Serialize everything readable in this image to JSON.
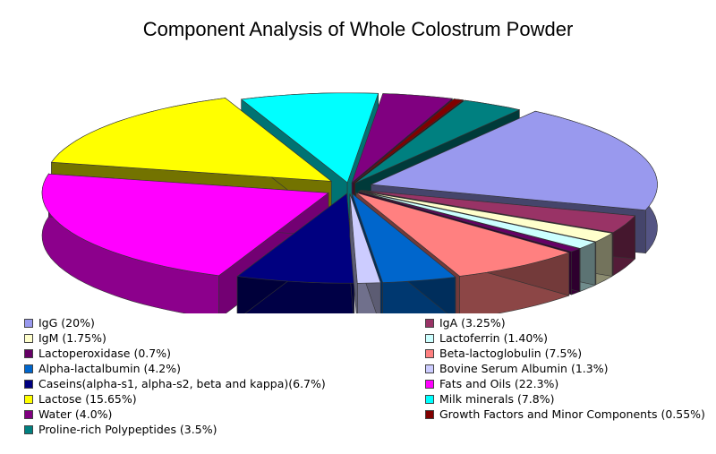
{
  "chart_data": {
    "type": "pie",
    "title": "Component Analysis of Whole Colostrum Powder",
    "legend_position": "bottom",
    "slices": [
      {
        "label": "IgG (20%)",
        "value": 20,
        "color": "#9999ee"
      },
      {
        "label": "IgA (3.25%)",
        "value": 3.25,
        "color": "#993366"
      },
      {
        "label": "IgM (1.75%)",
        "value": 1.75,
        "color": "#ffffcc"
      },
      {
        "label": "Lactoferrin (1.40%)",
        "value": 1.4,
        "color": "#ccffff"
      },
      {
        "label": "Lactoperoxidase (0.7%)",
        "value": 0.7,
        "color": "#660066"
      },
      {
        "label": "Beta-lactoglobulin (7.5%)",
        "value": 7.5,
        "color": "#ff8080"
      },
      {
        "label": "Alpha-lactalbumin (4.2%)",
        "value": 4.2,
        "color": "#0066cc"
      },
      {
        "label": "Bovine Serum Albumin (1.3%)",
        "value": 1.3,
        "color": "#ccccff"
      },
      {
        "label": "Caseins(alpha-s1, alpha-s2, beta and kappa)(6.7%)",
        "value": 6.7,
        "color": "#000080"
      },
      {
        "label": "Fats and Oils (22.3%)",
        "value": 22.3,
        "color": "#ff00ff"
      },
      {
        "label": "Lactose (15.65%)",
        "value": 15.65,
        "color": "#ffff00"
      },
      {
        "label": "Milk minerals (7.8%)",
        "value": 7.8,
        "color": "#00ffff"
      },
      {
        "label": "Water (4.0%)",
        "value": 4.0,
        "color": "#800080"
      },
      {
        "label": "Growth Factors and Minor Components (0.55%)",
        "value": 0.55,
        "color": "#800000"
      },
      {
        "label": "Proline-rich Polypeptides (3.5%)",
        "value": 3.5,
        "color": "#008080"
      }
    ]
  }
}
